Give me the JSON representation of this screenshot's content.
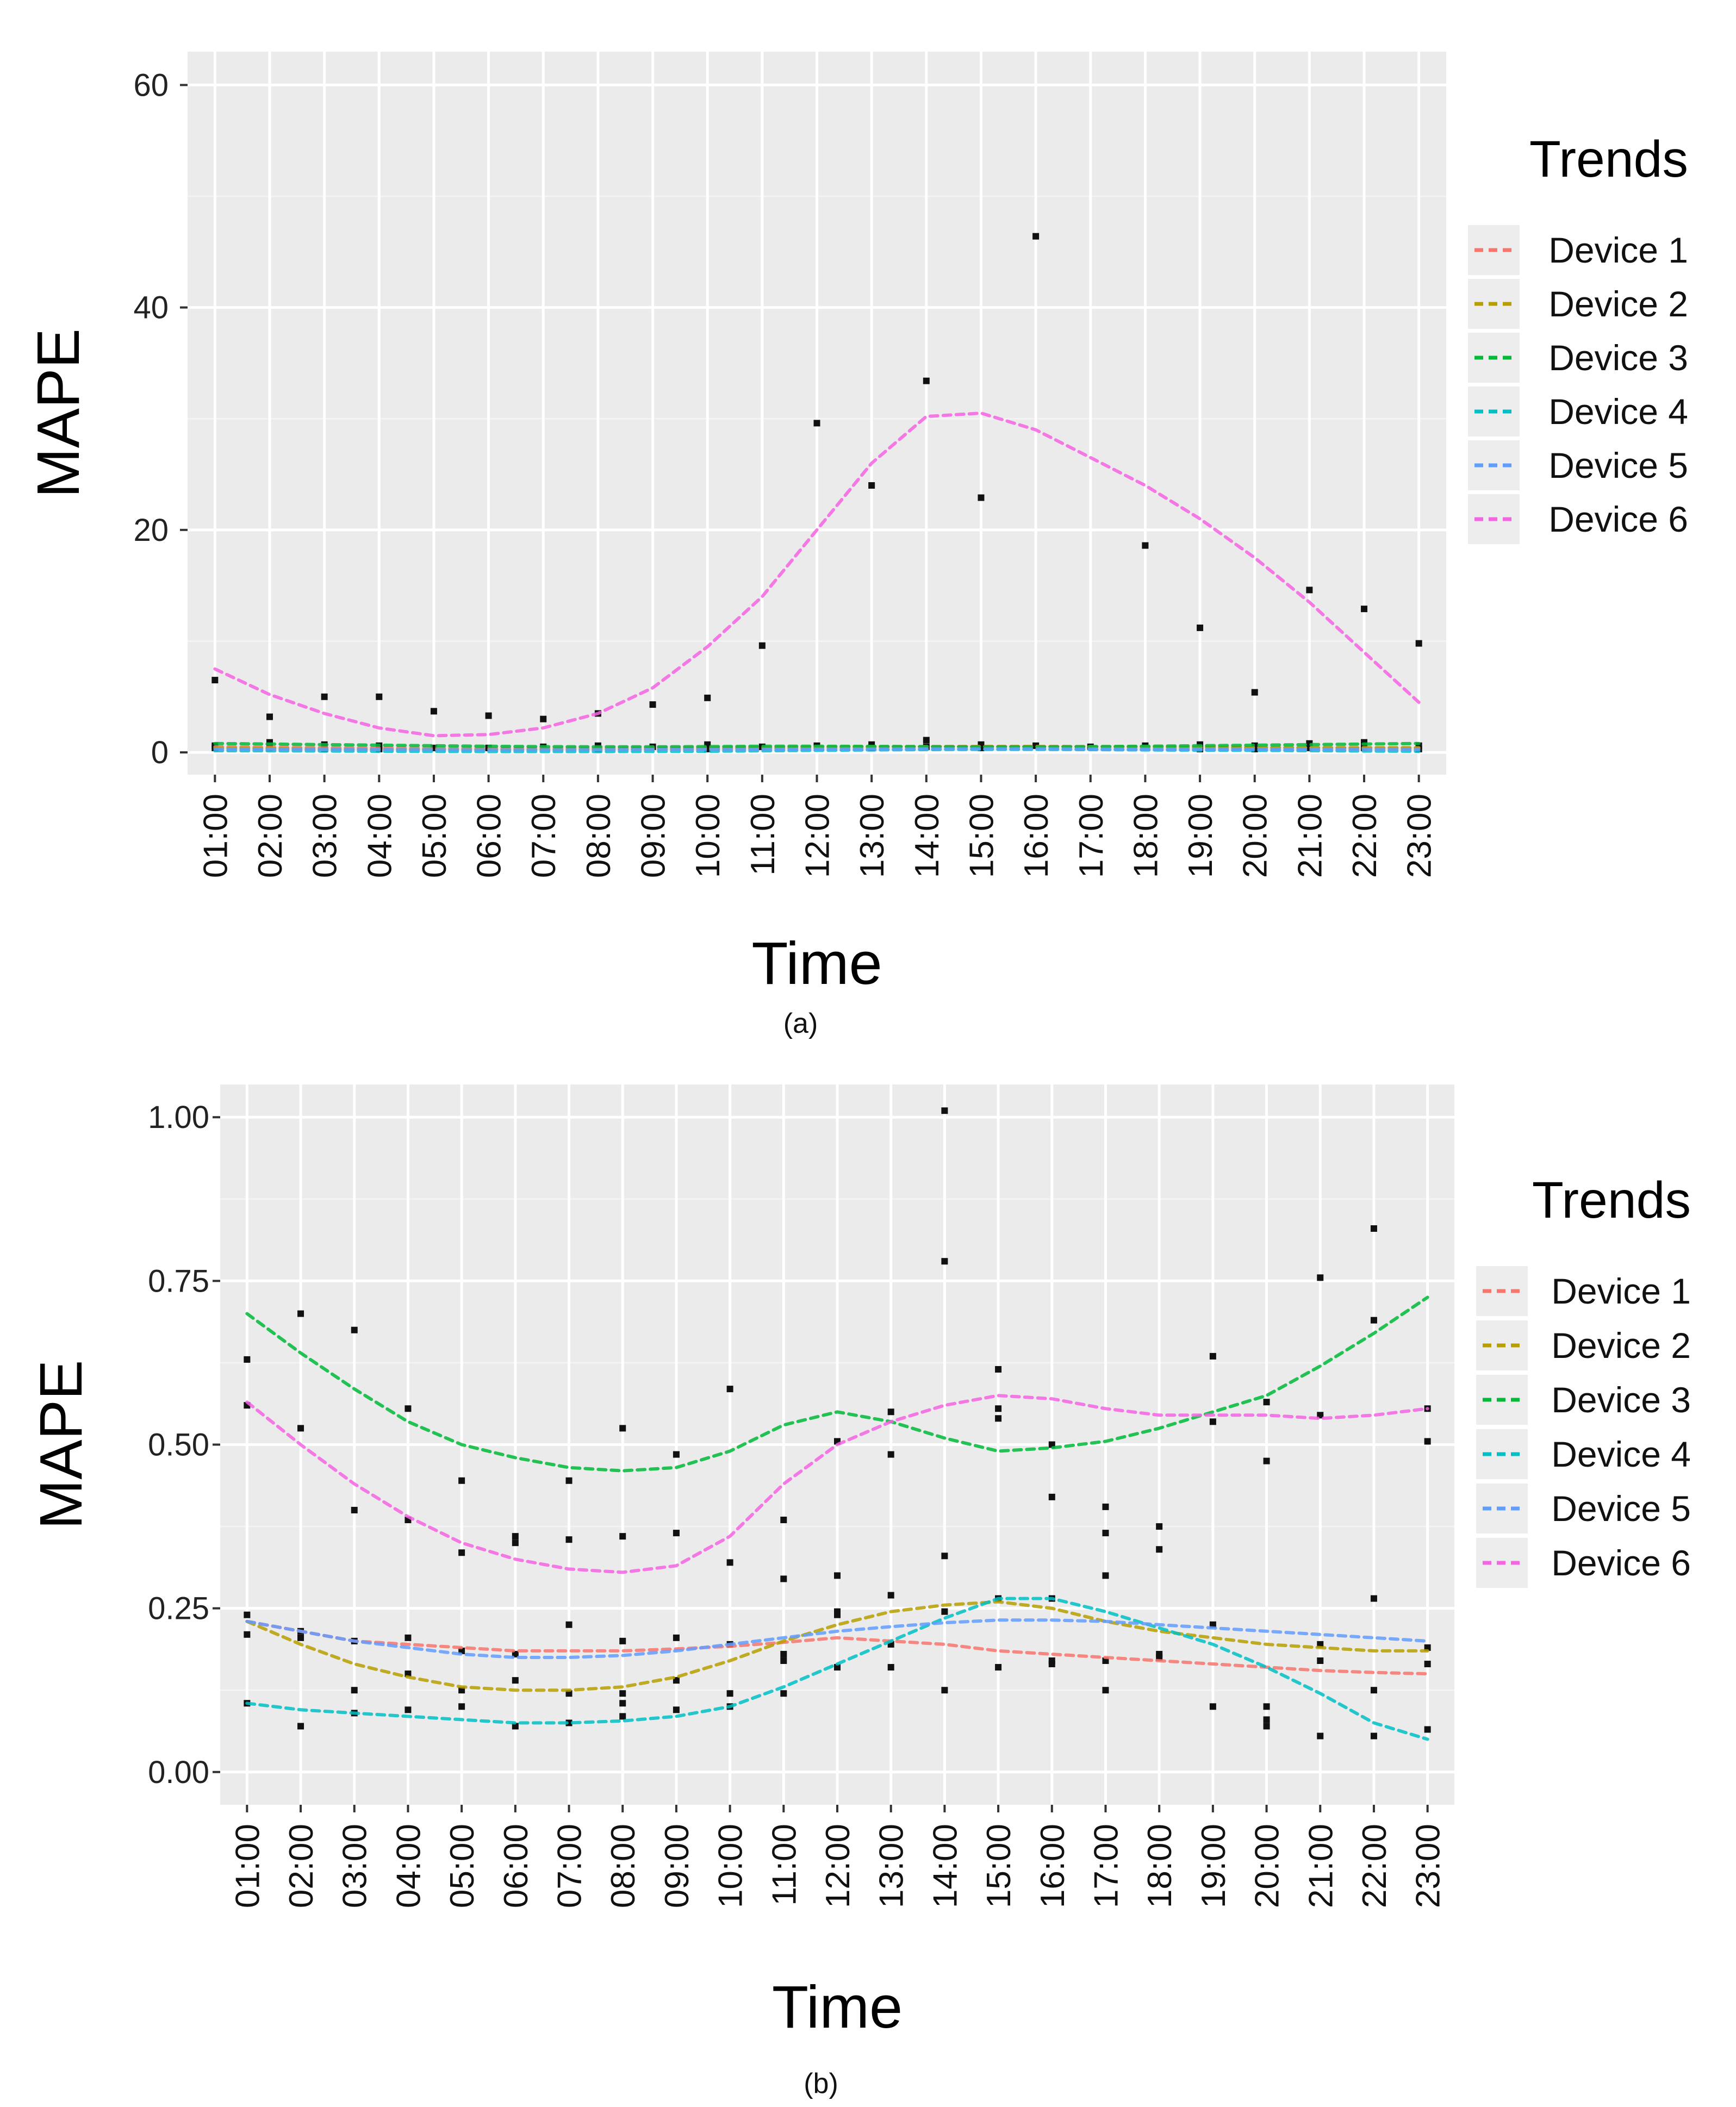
{
  "colors": {
    "Device 1": "#F8766D",
    "Device 2": "#B79F00",
    "Device 3": "#00BA38",
    "Device 4": "#00BFC4",
    "Device 5": "#619CFF",
    "Device 6": "#F564E3",
    "points": "#111111",
    "panel": "#EBEBEB"
  },
  "chart_data": [
    {
      "type": "scatter",
      "caption": "(a)",
      "title": "",
      "xlabel": "Time",
      "ylabel": "MAPE",
      "legend_title": "Trends",
      "legend_position": "right",
      "grid": true,
      "categories": [
        "01:00",
        "02:00",
        "03:00",
        "04:00",
        "05:00",
        "06:00",
        "07:00",
        "08:00",
        "09:00",
        "10:00",
        "11:00",
        "12:00",
        "13:00",
        "14:00",
        "15:00",
        "16:00",
        "17:00",
        "18:00",
        "19:00",
        "20:00",
        "21:00",
        "22:00",
        "23:00"
      ],
      "ylim": [
        -2,
        63
      ],
      "yticks": [
        0,
        20,
        40,
        60
      ],
      "ytick_labels": [
        "0",
        "20",
        "40",
        "60"
      ],
      "series": [
        {
          "name": "Device 1",
          "values": [
            0.5,
            0.45,
            0.42,
            0.4,
            0.38,
            0.37,
            0.37,
            0.38,
            0.4,
            0.42,
            0.45,
            0.48,
            0.5,
            0.52,
            0.53,
            0.53,
            0.52,
            0.5,
            0.48,
            0.45,
            0.42,
            0.4,
            0.38
          ]
        },
        {
          "name": "Device 2",
          "values": [
            0.4,
            0.35,
            0.3,
            0.27,
            0.25,
            0.24,
            0.24,
            0.25,
            0.28,
            0.32,
            0.38,
            0.43,
            0.47,
            0.5,
            0.52,
            0.52,
            0.5,
            0.47,
            0.45,
            0.43,
            0.42,
            0.42,
            0.42
          ]
        },
        {
          "name": "Device 3",
          "values": [
            0.8,
            0.75,
            0.7,
            0.65,
            0.6,
            0.55,
            0.52,
            0.5,
            0.5,
            0.52,
            0.55,
            0.55,
            0.54,
            0.52,
            0.5,
            0.5,
            0.52,
            0.55,
            0.6,
            0.65,
            0.7,
            0.75,
            0.8
          ]
        },
        {
          "name": "Device 4",
          "values": [
            0.15,
            0.14,
            0.12,
            0.1,
            0.08,
            0.07,
            0.07,
            0.07,
            0.08,
            0.1,
            0.14,
            0.18,
            0.22,
            0.25,
            0.27,
            0.27,
            0.25,
            0.22,
            0.2,
            0.18,
            0.15,
            0.12,
            0.1
          ]
        },
        {
          "name": "Device 5",
          "values": [
            0.3,
            0.28,
            0.26,
            0.25,
            0.24,
            0.23,
            0.23,
            0.24,
            0.25,
            0.26,
            0.28,
            0.3,
            0.31,
            0.32,
            0.32,
            0.32,
            0.31,
            0.3,
            0.29,
            0.28,
            0.27,
            0.26,
            0.25
          ]
        },
        {
          "name": "Device 6",
          "values": [
            7.5,
            5.2,
            3.5,
            2.2,
            1.5,
            1.6,
            2.2,
            3.5,
            5.8,
            9.5,
            14,
            20,
            26,
            30.2,
            30.5,
            29,
            26.5,
            24,
            21,
            17.5,
            13.5,
            9,
            4.5
          ]
        }
      ],
      "points": [
        {
          "x": "01:00",
          "y": 6.5
        },
        {
          "x": "01:00",
          "y": 0.6
        },
        {
          "x": "01:00",
          "y": 0.4
        },
        {
          "x": "02:00",
          "y": 3.2
        },
        {
          "x": "02:00",
          "y": 0.9
        },
        {
          "x": "02:00",
          "y": 0.4
        },
        {
          "x": "03:00",
          "y": 5.0
        },
        {
          "x": "03:00",
          "y": 0.7
        },
        {
          "x": "03:00",
          "y": 0.3
        },
        {
          "x": "04:00",
          "y": 5.0
        },
        {
          "x": "04:00",
          "y": 0.6
        },
        {
          "x": "04:00",
          "y": 0.3
        },
        {
          "x": "05:00",
          "y": 3.7
        },
        {
          "x": "05:00",
          "y": 0.4
        },
        {
          "x": "06:00",
          "y": 3.3
        },
        {
          "x": "06:00",
          "y": 0.4
        },
        {
          "x": "07:00",
          "y": 3.0
        },
        {
          "x": "07:00",
          "y": 0.5
        },
        {
          "x": "08:00",
          "y": 3.5
        },
        {
          "x": "08:00",
          "y": 0.6
        },
        {
          "x": "08:00",
          "y": 0.3
        },
        {
          "x": "09:00",
          "y": 4.3
        },
        {
          "x": "09:00",
          "y": 0.5
        },
        {
          "x": "10:00",
          "y": 4.9
        },
        {
          "x": "10:00",
          "y": 0.7
        },
        {
          "x": "10:00",
          "y": 0.3
        },
        {
          "x": "11:00",
          "y": 9.6
        },
        {
          "x": "11:00",
          "y": 0.5
        },
        {
          "x": "12:00",
          "y": 29.6
        },
        {
          "x": "12:00",
          "y": 0.6
        },
        {
          "x": "13:00",
          "y": 24.0
        },
        {
          "x": "13:00",
          "y": 0.7
        },
        {
          "x": "13:00",
          "y": 0.4
        },
        {
          "x": "14:00",
          "y": 33.4
        },
        {
          "x": "14:00",
          "y": 1.1
        },
        {
          "x": "14:00",
          "y": 0.5
        },
        {
          "x": "15:00",
          "y": 22.9
        },
        {
          "x": "15:00",
          "y": 0.7
        },
        {
          "x": "15:00",
          "y": 0.4
        },
        {
          "x": "16:00",
          "y": 46.4
        },
        {
          "x": "16:00",
          "y": 0.6
        },
        {
          "x": "17:00",
          "y": 0.5
        },
        {
          "x": "18:00",
          "y": 18.6
        },
        {
          "x": "18:00",
          "y": 0.6
        },
        {
          "x": "19:00",
          "y": 11.2
        },
        {
          "x": "19:00",
          "y": 0.7
        },
        {
          "x": "19:00",
          "y": 0.3
        },
        {
          "x": "20:00",
          "y": 5.4
        },
        {
          "x": "20:00",
          "y": 0.6
        },
        {
          "x": "20:00",
          "y": 0.3
        },
        {
          "x": "21:00",
          "y": 14.6
        },
        {
          "x": "21:00",
          "y": 0.8
        },
        {
          "x": "21:00",
          "y": 0.4
        },
        {
          "x": "22:00",
          "y": 12.9
        },
        {
          "x": "22:00",
          "y": 0.9
        },
        {
          "x": "22:00",
          "y": 0.4
        },
        {
          "x": "23:00",
          "y": 9.8
        },
        {
          "x": "23:00",
          "y": 0.6
        },
        {
          "x": "23:00",
          "y": 0.3
        }
      ]
    },
    {
      "type": "scatter",
      "caption": "(b)",
      "title": "",
      "xlabel": "Time",
      "ylabel": "MAPE",
      "legend_title": "Trends",
      "legend_position": "right",
      "grid": true,
      "categories": [
        "01:00",
        "02:00",
        "03:00",
        "04:00",
        "05:00",
        "06:00",
        "07:00",
        "08:00",
        "09:00",
        "10:00",
        "11:00",
        "12:00",
        "13:00",
        "14:00",
        "15:00",
        "16:00",
        "17:00",
        "18:00",
        "19:00",
        "20:00",
        "21:00",
        "22:00",
        "23:00"
      ],
      "ylim": [
        -0.05,
        1.05
      ],
      "yticks": [
        0,
        0.25,
        0.5,
        0.75,
        1.0
      ],
      "ytick_labels": [
        "0.00",
        "0.25",
        "0.50",
        "0.75",
        "1.00"
      ],
      "series": [
        {
          "name": "Device 1",
          "values": [
            0.23,
            0.215,
            0.2,
            0.195,
            0.19,
            0.185,
            0.185,
            0.185,
            0.188,
            0.192,
            0.198,
            0.205,
            0.2,
            0.195,
            0.185,
            0.18,
            0.175,
            0.17,
            0.165,
            0.16,
            0.155,
            0.152,
            0.15
          ]
        },
        {
          "name": "Device 2",
          "values": [
            0.23,
            0.195,
            0.165,
            0.145,
            0.13,
            0.125,
            0.125,
            0.13,
            0.145,
            0.17,
            0.2,
            0.225,
            0.245,
            0.255,
            0.26,
            0.25,
            0.23,
            0.215,
            0.205,
            0.195,
            0.19,
            0.185,
            0.185
          ]
        },
        {
          "name": "Device 3",
          "values": [
            0.7,
            0.64,
            0.585,
            0.535,
            0.5,
            0.48,
            0.465,
            0.46,
            0.465,
            0.49,
            0.53,
            0.55,
            0.535,
            0.51,
            0.49,
            0.495,
            0.505,
            0.525,
            0.55,
            0.575,
            0.62,
            0.67,
            0.725
          ]
        },
        {
          "name": "Device 4",
          "values": [
            0.105,
            0.095,
            0.09,
            0.085,
            0.08,
            0.075,
            0.075,
            0.078,
            0.085,
            0.1,
            0.13,
            0.165,
            0.2,
            0.235,
            0.265,
            0.265,
            0.245,
            0.22,
            0.195,
            0.16,
            0.12,
            0.075,
            0.05
          ]
        },
        {
          "name": "Device 5",
          "values": [
            0.23,
            0.215,
            0.2,
            0.19,
            0.18,
            0.175,
            0.175,
            0.178,
            0.185,
            0.195,
            0.205,
            0.215,
            0.222,
            0.228,
            0.232,
            0.232,
            0.23,
            0.225,
            0.22,
            0.215,
            0.21,
            0.205,
            0.2
          ]
        },
        {
          "name": "Device 6",
          "values": [
            0.565,
            0.5,
            0.44,
            0.39,
            0.35,
            0.325,
            0.31,
            0.305,
            0.315,
            0.36,
            0.44,
            0.5,
            0.535,
            0.56,
            0.575,
            0.57,
            0.555,
            0.545,
            0.545,
            0.545,
            0.54,
            0.545,
            0.555
          ]
        }
      ],
      "points": [
        {
          "x": "01:00",
          "y": 0.63
        },
        {
          "x": "01:00",
          "y": 0.56
        },
        {
          "x": "01:00",
          "y": 0.24
        },
        {
          "x": "01:00",
          "y": 0.21
        },
        {
          "x": "01:00",
          "y": 0.105
        },
        {
          "x": "02:00",
          "y": 0.7
        },
        {
          "x": "02:00",
          "y": 0.525
        },
        {
          "x": "02:00",
          "y": 0.215
        },
        {
          "x": "02:00",
          "y": 0.205
        },
        {
          "x": "02:00",
          "y": 0.07
        },
        {
          "x": "03:00",
          "y": 0.675
        },
        {
          "x": "03:00",
          "y": 0.4
        },
        {
          "x": "03:00",
          "y": 0.2
        },
        {
          "x": "03:00",
          "y": 0.125
        },
        {
          "x": "03:00",
          "y": 0.09
        },
        {
          "x": "04:00",
          "y": 0.555
        },
        {
          "x": "04:00",
          "y": 0.385
        },
        {
          "x": "04:00",
          "y": 0.205
        },
        {
          "x": "04:00",
          "y": 0.15
        },
        {
          "x": "04:00",
          "y": 0.095
        },
        {
          "x": "05:00",
          "y": 0.445
        },
        {
          "x": "05:00",
          "y": 0.335
        },
        {
          "x": "05:00",
          "y": 0.185
        },
        {
          "x": "05:00",
          "y": 0.125
        },
        {
          "x": "05:00",
          "y": 0.1
        },
        {
          "x": "06:00",
          "y": 0.36
        },
        {
          "x": "06:00",
          "y": 0.35
        },
        {
          "x": "06:00",
          "y": 0.18
        },
        {
          "x": "06:00",
          "y": 0.14
        },
        {
          "x": "06:00",
          "y": 0.07
        },
        {
          "x": "07:00",
          "y": 0.445
        },
        {
          "x": "07:00",
          "y": 0.355
        },
        {
          "x": "07:00",
          "y": 0.225
        },
        {
          "x": "07:00",
          "y": 0.12
        },
        {
          "x": "07:00",
          "y": 0.075
        },
        {
          "x": "08:00",
          "y": 0.525
        },
        {
          "x": "08:00",
          "y": 0.36
        },
        {
          "x": "08:00",
          "y": 0.2
        },
        {
          "x": "08:00",
          "y": 0.12
        },
        {
          "x": "08:00",
          "y": 0.105
        },
        {
          "x": "08:00",
          "y": 0.085
        },
        {
          "x": "09:00",
          "y": 0.485
        },
        {
          "x": "09:00",
          "y": 0.365
        },
        {
          "x": "09:00",
          "y": 0.205
        },
        {
          "x": "09:00",
          "y": 0.14
        },
        {
          "x": "09:00",
          "y": 0.095
        },
        {
          "x": "10:00",
          "y": 0.585
        },
        {
          "x": "10:00",
          "y": 0.32
        },
        {
          "x": "10:00",
          "y": 0.195
        },
        {
          "x": "10:00",
          "y": 0.12
        },
        {
          "x": "10:00",
          "y": 0.1
        },
        {
          "x": "11:00",
          "y": 0.385
        },
        {
          "x": "11:00",
          "y": 0.295
        },
        {
          "x": "11:00",
          "y": 0.18
        },
        {
          "x": "11:00",
          "y": 0.17
        },
        {
          "x": "11:00",
          "y": 0.12
        },
        {
          "x": "12:00",
          "y": 0.505
        },
        {
          "x": "12:00",
          "y": 0.3
        },
        {
          "x": "12:00",
          "y": 0.245
        },
        {
          "x": "12:00",
          "y": 0.24
        },
        {
          "x": "12:00",
          "y": 0.16
        },
        {
          "x": "13:00",
          "y": 0.55
        },
        {
          "x": "13:00",
          "y": 0.485
        },
        {
          "x": "13:00",
          "y": 0.27
        },
        {
          "x": "13:00",
          "y": 0.195
        },
        {
          "x": "13:00",
          "y": 0.16
        },
        {
          "x": "14:00",
          "y": 1.01
        },
        {
          "x": "14:00",
          "y": 0.78
        },
        {
          "x": "14:00",
          "y": 0.33
        },
        {
          "x": "14:00",
          "y": 0.245
        },
        {
          "x": "14:00",
          "y": 0.125
        },
        {
          "x": "15:00",
          "y": 0.615
        },
        {
          "x": "15:00",
          "y": 0.555
        },
        {
          "x": "15:00",
          "y": 0.54
        },
        {
          "x": "15:00",
          "y": 0.265
        },
        {
          "x": "15:00",
          "y": 0.16
        },
        {
          "x": "16:00",
          "y": 0.5
        },
        {
          "x": "16:00",
          "y": 0.42
        },
        {
          "x": "16:00",
          "y": 0.265
        },
        {
          "x": "16:00",
          "y": 0.17
        },
        {
          "x": "16:00",
          "y": 0.165
        },
        {
          "x": "17:00",
          "y": 0.405
        },
        {
          "x": "17:00",
          "y": 0.365
        },
        {
          "x": "17:00",
          "y": 0.3
        },
        {
          "x": "17:00",
          "y": 0.17
        },
        {
          "x": "17:00",
          "y": 0.125
        },
        {
          "x": "18:00",
          "y": 0.375
        },
        {
          "x": "18:00",
          "y": 0.34
        },
        {
          "x": "18:00",
          "y": 0.18
        },
        {
          "x": "18:00",
          "y": 0.175
        },
        {
          "x": "19:00",
          "y": 0.635
        },
        {
          "x": "19:00",
          "y": 0.535
        },
        {
          "x": "19:00",
          "y": 0.225
        },
        {
          "x": "19:00",
          "y": 0.1
        },
        {
          "x": "20:00",
          "y": 0.565
        },
        {
          "x": "20:00",
          "y": 0.475
        },
        {
          "x": "20:00",
          "y": 0.1
        },
        {
          "x": "20:00",
          "y": 0.08
        },
        {
          "x": "20:00",
          "y": 0.07
        },
        {
          "x": "21:00",
          "y": 0.755
        },
        {
          "x": "21:00",
          "y": 0.545
        },
        {
          "x": "21:00",
          "y": 0.195
        },
        {
          "x": "21:00",
          "y": 0.17
        },
        {
          "x": "21:00",
          "y": 0.055
        },
        {
          "x": "22:00",
          "y": 0.83
        },
        {
          "x": "22:00",
          "y": 0.69
        },
        {
          "x": "22:00",
          "y": 0.265
        },
        {
          "x": "22:00",
          "y": 0.125
        },
        {
          "x": "22:00",
          "y": 0.055
        },
        {
          "x": "23:00",
          "y": 0.555
        },
        {
          "x": "23:00",
          "y": 0.505
        },
        {
          "x": "23:00",
          "y": 0.19
        },
        {
          "x": "23:00",
          "y": 0.165
        },
        {
          "x": "23:00",
          "y": 0.065
        }
      ]
    }
  ]
}
